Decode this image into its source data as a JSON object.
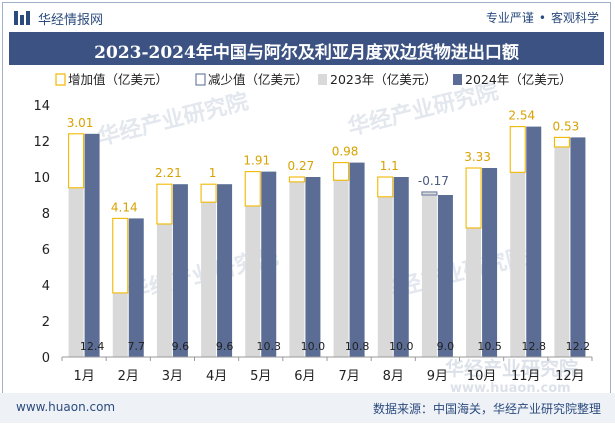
{
  "header": {
    "brand": "华经情报网",
    "tags": [
      "专业严谨",
      "客观科学"
    ]
  },
  "title": "2023-2024年中国与阿尔及利亚月度双边货物进出口额",
  "watermark": "华经产业研究院",
  "watermark_url": "www.huaon.com",
  "footer": {
    "website": "www.huaon.com",
    "source": "数据来源：中国海关，华经产业研究院整理"
  },
  "colors": {
    "bar2023": "#d9d9d9",
    "bar2024": "#5b6d95",
    "increase": "#f2b800",
    "decrease": "#6f7fa5",
    "title_bg": "#3c5282"
  },
  "chart_data": {
    "type": "bar",
    "title": "2023-2024年中国与阿尔及利亚月度双边货物进出口额",
    "xlabel": "",
    "ylabel": "",
    "ylim": [
      0,
      14
    ],
    "yticks": [
      0,
      2,
      4,
      6,
      8,
      10,
      12,
      14
    ],
    "legend_position": "top",
    "categories": [
      "1月",
      "2月",
      "3月",
      "4月",
      "5月",
      "6月",
      "7月",
      "8月",
      "9月",
      "10月",
      "11月",
      "12月"
    ],
    "series": [
      {
        "name": "增加值（亿美元）",
        "values": [
          3.01,
          4.14,
          2.21,
          1,
          1.91,
          0.27,
          0.98,
          1.1,
          null,
          3.33,
          2.54,
          0.53
        ]
      },
      {
        "name": "减少值（亿美元）",
        "values": [
          null,
          null,
          null,
          null,
          null,
          null,
          null,
          null,
          -0.17,
          null,
          null,
          null
        ]
      },
      {
        "name": "2023年（亿美元）",
        "values": [
          9.4,
          3.56,
          7.39,
          8.6,
          8.39,
          9.73,
          9.82,
          8.9,
          9.17,
          7.17,
          10.26,
          11.67
        ]
      },
      {
        "name": "2024年（亿美元）",
        "values": [
          12.4,
          7.7,
          9.6,
          9.6,
          10.3,
          10.0,
          10.8,
          10.0,
          9.0,
          10.5,
          12.8,
          12.2
        ]
      }
    ],
    "change_labels": [
      "3.01",
      "4.14",
      "2.21",
      "1",
      "1.91",
      "0.27",
      "0.98",
      "1.1",
      "-0.17",
      "3.33",
      "2.54",
      "0.53"
    ],
    "value_labels_2024": [
      "12.4",
      "7.7",
      "9.6",
      "9.6",
      "10.3",
      "10.0",
      "10.8",
      "10.0",
      "9.0",
      "10.5",
      "12.8",
      "12.2"
    ]
  }
}
